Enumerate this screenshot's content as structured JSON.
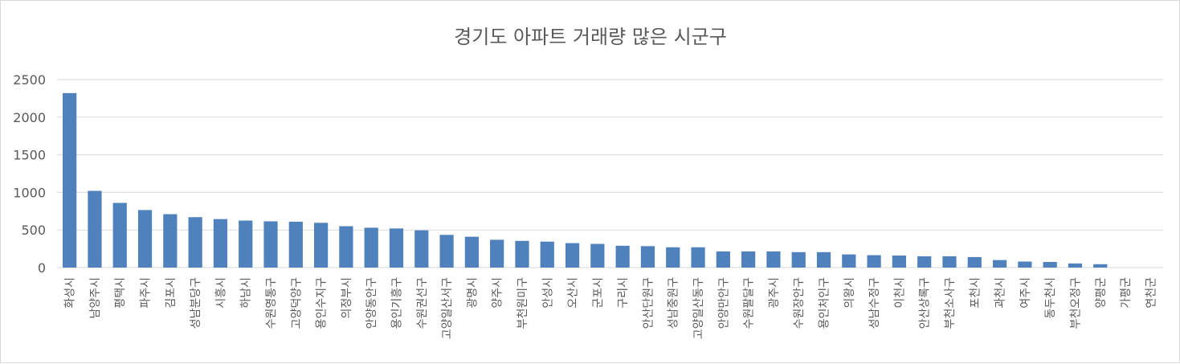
{
  "chart_data": {
    "type": "bar",
    "title": "경기도 아파트 거래량 많은 시군구",
    "xlabel": "",
    "ylabel": "",
    "ylim": [
      0,
      2500
    ],
    "yticks": [
      0,
      500,
      1000,
      1500,
      2000,
      2500
    ],
    "grid": true,
    "legend": "none",
    "bar_color": "#4f81bd",
    "categories": [
      "화성시",
      "남양주시",
      "평택시",
      "파주시",
      "김포시",
      "성남분당구",
      "시흥시",
      "하남시",
      "수원영통구",
      "고양덕양구",
      "용인수지구",
      "의정부시",
      "안양동안구",
      "용인기흥구",
      "수원권선구",
      "고양일산서구",
      "광명시",
      "양주시",
      "부천원미구",
      "안성시",
      "오산시",
      "군포시",
      "구리시",
      "안산단원구",
      "성남중원구",
      "고양일산동구",
      "안양만안구",
      "수원팔달구",
      "광주시",
      "수원장안구",
      "용인처인구",
      "의왕시",
      "성남수정구",
      "이천시",
      "안산상록구",
      "부천소사구",
      "포천시",
      "과천시",
      "여주시",
      "동두천시",
      "부천오정구",
      "양평군",
      "가평군",
      "연천군"
    ],
    "values": [
      2320,
      1020,
      860,
      765,
      710,
      670,
      645,
      625,
      615,
      610,
      595,
      550,
      530,
      520,
      495,
      435,
      410,
      370,
      355,
      345,
      325,
      315,
      290,
      285,
      270,
      270,
      215,
      215,
      215,
      205,
      205,
      175,
      165,
      160,
      150,
      150,
      140,
      100,
      80,
      75,
      55,
      45,
      0,
      0
    ]
  }
}
